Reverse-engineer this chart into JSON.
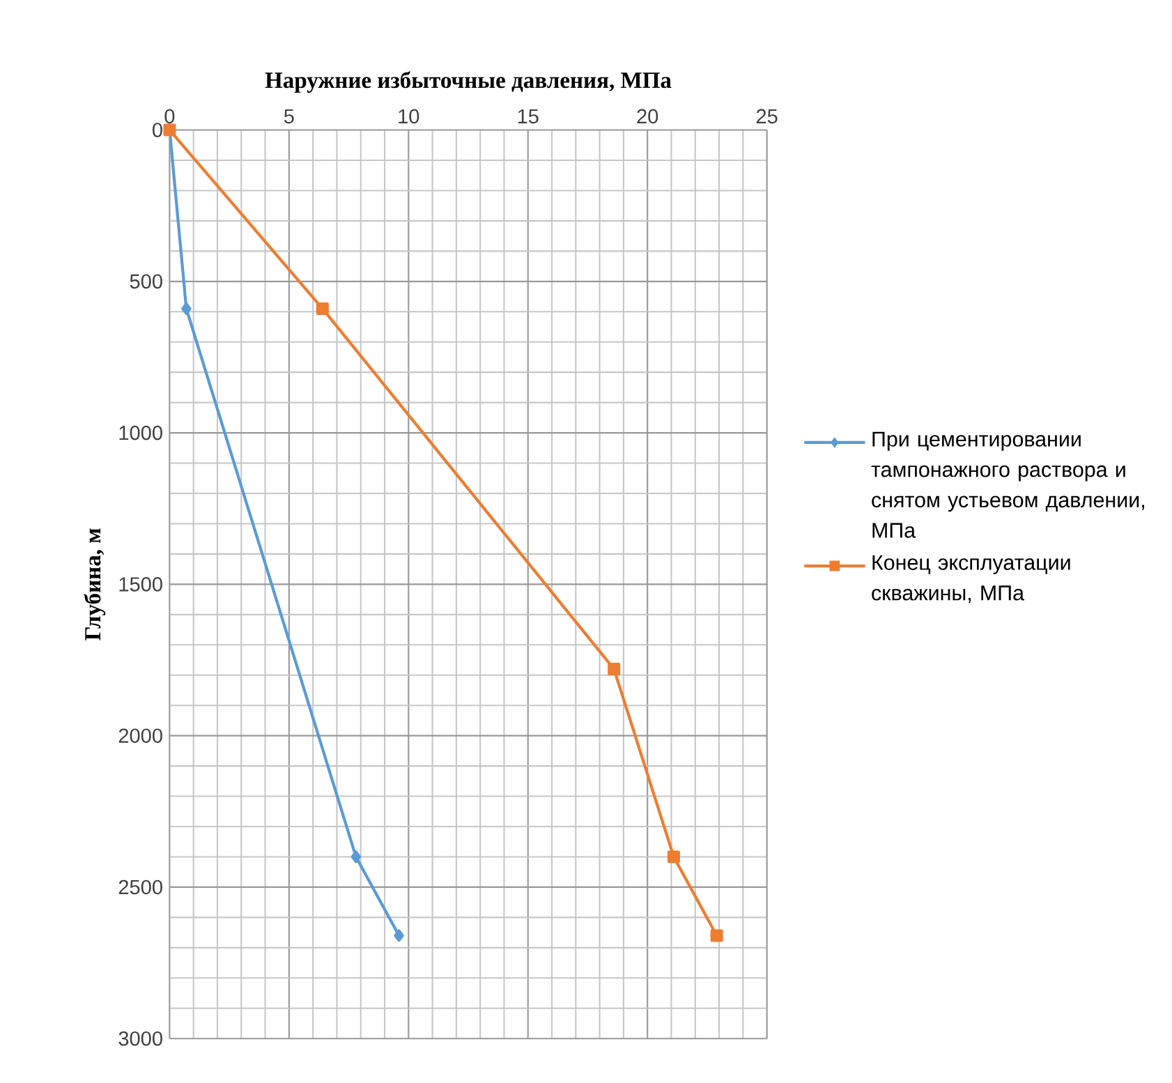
{
  "chart_data": {
    "type": "line",
    "xlabel": "Наружние избыточные давления, МПа",
    "ylabel": "Глубина, м",
    "xlim": [
      0,
      25
    ],
    "xticks": [
      0,
      5,
      10,
      15,
      20,
      25
    ],
    "ylim": [
      3000,
      0
    ],
    "yticks": [
      0,
      500,
      1000,
      1500,
      2000,
      2500,
      3000
    ],
    "grid": true,
    "legend": "right",
    "series": [
      {
        "name": "При цементировании тампонажного раствора и снятом устьевом давлении, МПа",
        "color": "#5b9bd5",
        "marker": "diamond",
        "x": [
          0,
          0.7,
          7.8,
          9.6
        ],
        "values": [
          0,
          590,
          2400,
          2660
        ]
      },
      {
        "name": "Конец эксплуатации скважины, МПа",
        "color": "#ed7d31",
        "marker": "square",
        "x": [
          0,
          6.4,
          18.6,
          21.1,
          22.9
        ],
        "values": [
          0,
          590,
          1780,
          2400,
          2660
        ]
      }
    ]
  }
}
